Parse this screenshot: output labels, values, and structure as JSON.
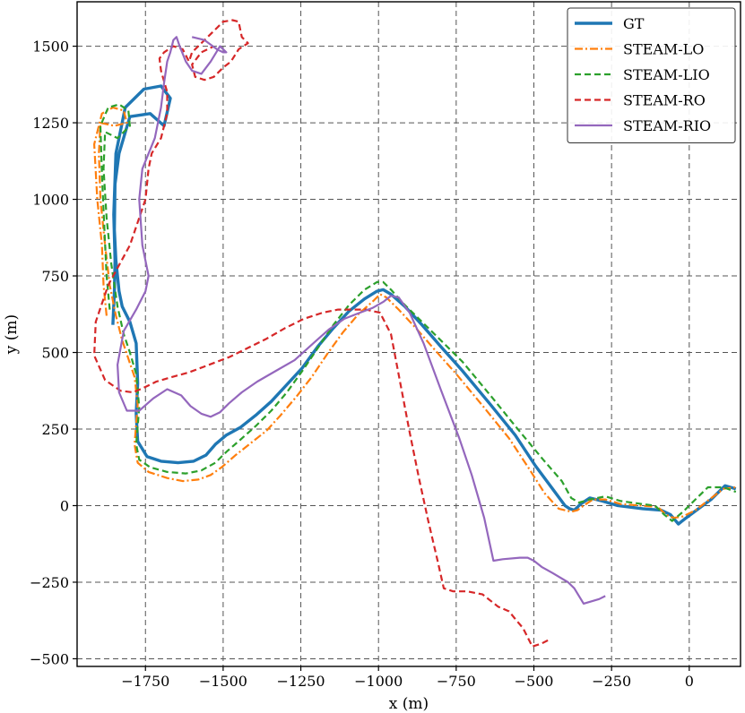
{
  "chart_data": {
    "type": "line",
    "title": "",
    "xlabel": "x (m)",
    "ylabel": "y (m)",
    "xlim": [
      -1970,
      165
    ],
    "ylim": [
      -525,
      1645
    ],
    "xticks": [
      -1750,
      -1500,
      -1250,
      -1000,
      -750,
      -500,
      -250,
      0
    ],
    "xtick_labels": [
      "−1750",
      "−1500",
      "−1250",
      "−1000",
      "−750",
      "−500",
      "−250",
      "0"
    ],
    "yticks": [
      -500,
      -250,
      0,
      250,
      500,
      750,
      1000,
      1250,
      1500
    ],
    "ytick_labels": [
      "−500",
      "−250",
      "0",
      "250",
      "500",
      "750",
      "1000",
      "1250",
      "1500"
    ],
    "grid": true,
    "grid_style": "dashed",
    "legend_position": "top-right",
    "series": [
      {
        "name": "GT",
        "color": "#1f77b4",
        "dash": "solid",
        "width": "thick",
        "x": [
          -1855,
          -1850,
          -1848,
          -1852,
          -1845,
          -1815,
          -1755,
          -1700,
          -1670,
          -1690,
          -1735,
          -1800,
          -1835,
          -1848,
          -1850,
          -1845,
          -1835,
          -1825,
          -1800,
          -1780,
          -1775,
          -1780,
          -1775,
          -1745,
          -1700,
          -1645,
          -1595,
          -1555,
          -1525,
          -1490,
          -1445,
          -1395,
          -1345,
          -1295,
          -1245,
          -1195,
          -1145,
          -1095,
          -1045,
          -1005,
          -985,
          -960,
          -915,
          -860,
          -800,
          -730,
          -640,
          -560,
          -495,
          -440,
          -400,
          -385,
          -370,
          -350,
          -320,
          -280,
          -230,
          -150,
          -90,
          -60,
          -35,
          -10,
          30,
          70,
          115,
          150
        ],
        "y": [
          590,
          700,
          800,
          950,
          1150,
          1300,
          1360,
          1370,
          1330,
          1240,
          1280,
          1270,
          1150,
          1050,
          900,
          800,
          700,
          650,
          600,
          530,
          400,
          300,
          210,
          160,
          145,
          140,
          145,
          165,
          200,
          230,
          255,
          295,
          340,
          395,
          450,
          520,
          580,
          635,
          675,
          700,
          705,
          690,
          650,
          590,
          520,
          440,
          330,
          230,
          130,
          55,
          0,
          -10,
          -15,
          5,
          25,
          15,
          0,
          -10,
          -15,
          -30,
          -60,
          -40,
          -10,
          20,
          65,
          55
        ]
      },
      {
        "name": "STEAM-LO",
        "color": "#ff7f0e",
        "dash": "dashdot",
        "width": "normal",
        "x": [
          -1875,
          -1885,
          -1890,
          -1905,
          -1915,
          -1890,
          -1855,
          -1820,
          -1810,
          -1850,
          -1895,
          -1900,
          -1895,
          -1880,
          -1865,
          -1845,
          -1825,
          -1805,
          -1785,
          -1775,
          -1785,
          -1775,
          -1740,
          -1680,
          -1630,
          -1580,
          -1540,
          -1505,
          -1460,
          -1410,
          -1360,
          -1315,
          -1265,
          -1215,
          -1165,
          -1115,
          -1065,
          -1015,
          -995,
          -975,
          -935,
          -880,
          -820,
          -750,
          -660,
          -580,
          -515,
          -465,
          -420,
          -380,
          -360,
          -340,
          -310,
          -270,
          -220,
          -150,
          -100,
          -75,
          -50,
          -20,
          20,
          65,
          110,
          150
        ],
        "y": [
          620,
          720,
          850,
          1000,
          1180,
          1280,
          1300,
          1290,
          1250,
          1240,
          1250,
          1150,
          1000,
          850,
          720,
          620,
          540,
          480,
          420,
          330,
          200,
          140,
          110,
          90,
          80,
          85,
          100,
          125,
          165,
          205,
          245,
          295,
          355,
          420,
          495,
          565,
          625,
          670,
          690,
          680,
          640,
          580,
          510,
          430,
          320,
          220,
          120,
          40,
          -10,
          -20,
          -15,
          0,
          20,
          20,
          5,
          0,
          -5,
          -30,
          -40,
          -35,
          -15,
          20,
          55,
          60
        ]
      },
      {
        "name": "STEAM-LIO",
        "color": "#2ca02c",
        "dash": "dashed",
        "width": "normal",
        "x": [
          -1865,
          -1875,
          -1882,
          -1890,
          -1895,
          -1870,
          -1835,
          -1805,
          -1800,
          -1840,
          -1880,
          -1885,
          -1875,
          -1860,
          -1840,
          -1820,
          -1800,
          -1780,
          -1770,
          -1780,
          -1770,
          -1735,
          -1680,
          -1620,
          -1570,
          -1525,
          -1490,
          -1445,
          -1395,
          -1345,
          -1295,
          -1245,
          -1195,
          -1145,
          -1095,
          -1045,
          -1005,
          -985,
          -960,
          -920,
          -860,
          -800,
          -730,
          -640,
          -560,
          -470,
          -410,
          -380,
          -355,
          -320,
          -270,
          -220,
          -150,
          -110,
          -80,
          -55,
          -20,
          20,
          60,
          110,
          150
        ],
        "y": [
          640,
          750,
          900,
          1080,
          1240,
          1300,
          1310,
          1290,
          1240,
          1200,
          1220,
          1100,
          940,
          790,
          650,
          560,
          500,
          430,
          320,
          200,
          150,
          125,
          110,
          105,
          115,
          140,
          175,
          215,
          260,
          310,
          370,
          440,
          515,
          590,
          655,
          705,
          730,
          730,
          705,
          660,
          600,
          540,
          470,
          360,
          260,
          150,
          80,
          25,
          10,
          20,
          30,
          15,
          5,
          0,
          -30,
          -50,
          -20,
          20,
          60,
          60,
          45
        ]
      },
      {
        "name": "STEAM-RO",
        "color": "#d62728",
        "dash": "dashed",
        "width": "normal",
        "x": [
          -455,
          -475,
          -505,
          -535,
          -560,
          -580,
          -615,
          -665,
          -715,
          -760,
          -790,
          -810,
          -840,
          -870,
          -900,
          -930,
          -960,
          -995,
          -1040,
          -1085,
          -1130,
          -1180,
          -1240,
          -1300,
          -1360,
          -1420,
          -1480,
          -1545,
          -1610,
          -1665,
          -1715,
          -1755,
          -1790,
          -1830,
          -1880,
          -1915,
          -1910,
          -1870,
          -1800,
          -1750,
          -1740,
          -1730,
          -1700,
          -1680,
          -1680,
          -1700,
          -1705,
          -1690,
          -1660,
          -1630,
          -1610,
          -1600,
          -1550,
          -1520,
          -1500,
          -1470,
          -1450,
          -1440,
          -1420,
          -1450,
          -1475,
          -1500,
          -1530,
          -1560,
          -1590,
          -1600,
          -1570,
          -1530
        ],
        "y": [
          -440,
          -450,
          -460,
          -400,
          -370,
          -345,
          -330,
          -290,
          -280,
          -280,
          -270,
          -180,
          -50,
          90,
          240,
          400,
          560,
          630,
          640,
          640,
          640,
          630,
          610,
          580,
          545,
          515,
          485,
          460,
          435,
          420,
          405,
          385,
          370,
          375,
          410,
          490,
          600,
          720,
          850,
          1000,
          1100,
          1150,
          1200,
          1280,
          1350,
          1420,
          1460,
          1480,
          1500,
          1490,
          1450,
          1480,
          1530,
          1560,
          1580,
          1585,
          1580,
          1530,
          1510,
          1490,
          1450,
          1430,
          1400,
          1390,
          1400,
          1440,
          1480,
          1500
        ]
      },
      {
        "name": "STEAM-RIO",
        "color": "#9467bd",
        "dash": "solid",
        "width": "normal",
        "x": [
          -270,
          -290,
          -340,
          -370,
          -390,
          -440,
          -475,
          -500,
          -520,
          -545,
          -600,
          -630,
          -660,
          -700,
          -740,
          -800,
          -855,
          -900,
          -935,
          -960,
          -985,
          -1020,
          -1060,
          -1110,
          -1160,
          -1210,
          -1270,
          -1330,
          -1390,
          -1440,
          -1480,
          -1510,
          -1540,
          -1570,
          -1605,
          -1635,
          -1680,
          -1725,
          -1770,
          -1810,
          -1835,
          -1840,
          -1820,
          -1780,
          -1750,
          -1740,
          -1760,
          -1770,
          -1760,
          -1720,
          -1700,
          -1690,
          -1680,
          -1670,
          -1660,
          -1650,
          -1640,
          -1620,
          -1600,
          -1570,
          -1540,
          -1510,
          -1490,
          -1500,
          -1520,
          -1560,
          -1600
        ],
        "y": [
          -295,
          -305,
          -320,
          -270,
          -250,
          -220,
          -200,
          -180,
          -170,
          -170,
          -175,
          -180,
          -40,
          100,
          220,
          380,
          530,
          630,
          680,
          685,
          665,
          645,
          630,
          610,
          575,
          530,
          475,
          440,
          405,
          370,
          335,
          305,
          290,
          300,
          325,
          360,
          380,
          350,
          310,
          310,
          370,
          460,
          570,
          640,
          700,
          750,
          850,
          1000,
          1100,
          1200,
          1300,
          1380,
          1450,
          1480,
          1520,
          1530,
          1500,
          1450,
          1420,
          1410,
          1450,
          1500,
          1480,
          1480,
          1490,
          1520,
          1530
        ]
      }
    ]
  }
}
